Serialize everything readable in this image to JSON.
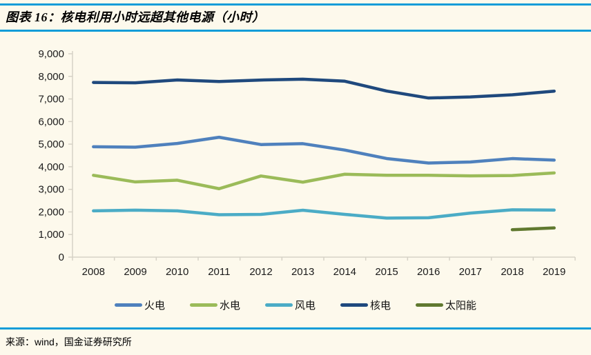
{
  "header": {
    "title": "图表 16：核电利用小时远超其他电源（小时）"
  },
  "source": {
    "text": "来源：wind，国金证券研究所"
  },
  "colors": {
    "background": "#FDF9EC",
    "rule_blue": "#0E9CD8",
    "axis_gray": "#D6D2C6",
    "tick_label": "#1A1A1A"
  },
  "chart_data": {
    "type": "line",
    "title": "核电利用小时远超其他电源（小时）",
    "xlabel": "",
    "ylabel": "",
    "ylim": [
      0,
      9000
    ],
    "ytick_step": 1000,
    "grid": false,
    "legend_position": "bottom",
    "categories": [
      "2008",
      "2009",
      "2010",
      "2011",
      "2012",
      "2013",
      "2014",
      "2015",
      "2016",
      "2017",
      "2018",
      "2019"
    ],
    "series": [
      {
        "id": "thermal",
        "name": "火电",
        "color": "#4F81BD",
        "values": [
          4885,
          4865,
          5031,
          5305,
          4982,
          5021,
          4739,
          4364,
          4165,
          4209,
          4361,
          4293
        ]
      },
      {
        "id": "hydro",
        "name": "水电",
        "color": "#9BBB59",
        "values": [
          3621,
          3328,
          3404,
          3028,
          3591,
          3318,
          3669,
          3621,
          3621,
          3597,
          3613,
          3726
        ]
      },
      {
        "id": "wind",
        "name": "风电",
        "color": "#4BACC6",
        "values": [
          2046,
          2077,
          2047,
          1875,
          1890,
          2074,
          1893,
          1728,
          1742,
          1948,
          2095,
          2082
        ]
      },
      {
        "id": "nuclear",
        "name": "核电",
        "color": "#1F497D",
        "values": [
          7731,
          7714,
          7840,
          7772,
          7838,
          7874,
          7787,
          7350,
          7042,
          7089,
          7184,
          7346
        ]
      },
      {
        "id": "solar",
        "name": "太阳能",
        "color": "#60792F",
        "values": [
          null,
          null,
          null,
          null,
          null,
          null,
          null,
          null,
          null,
          null,
          1212,
          1291
        ]
      }
    ]
  }
}
